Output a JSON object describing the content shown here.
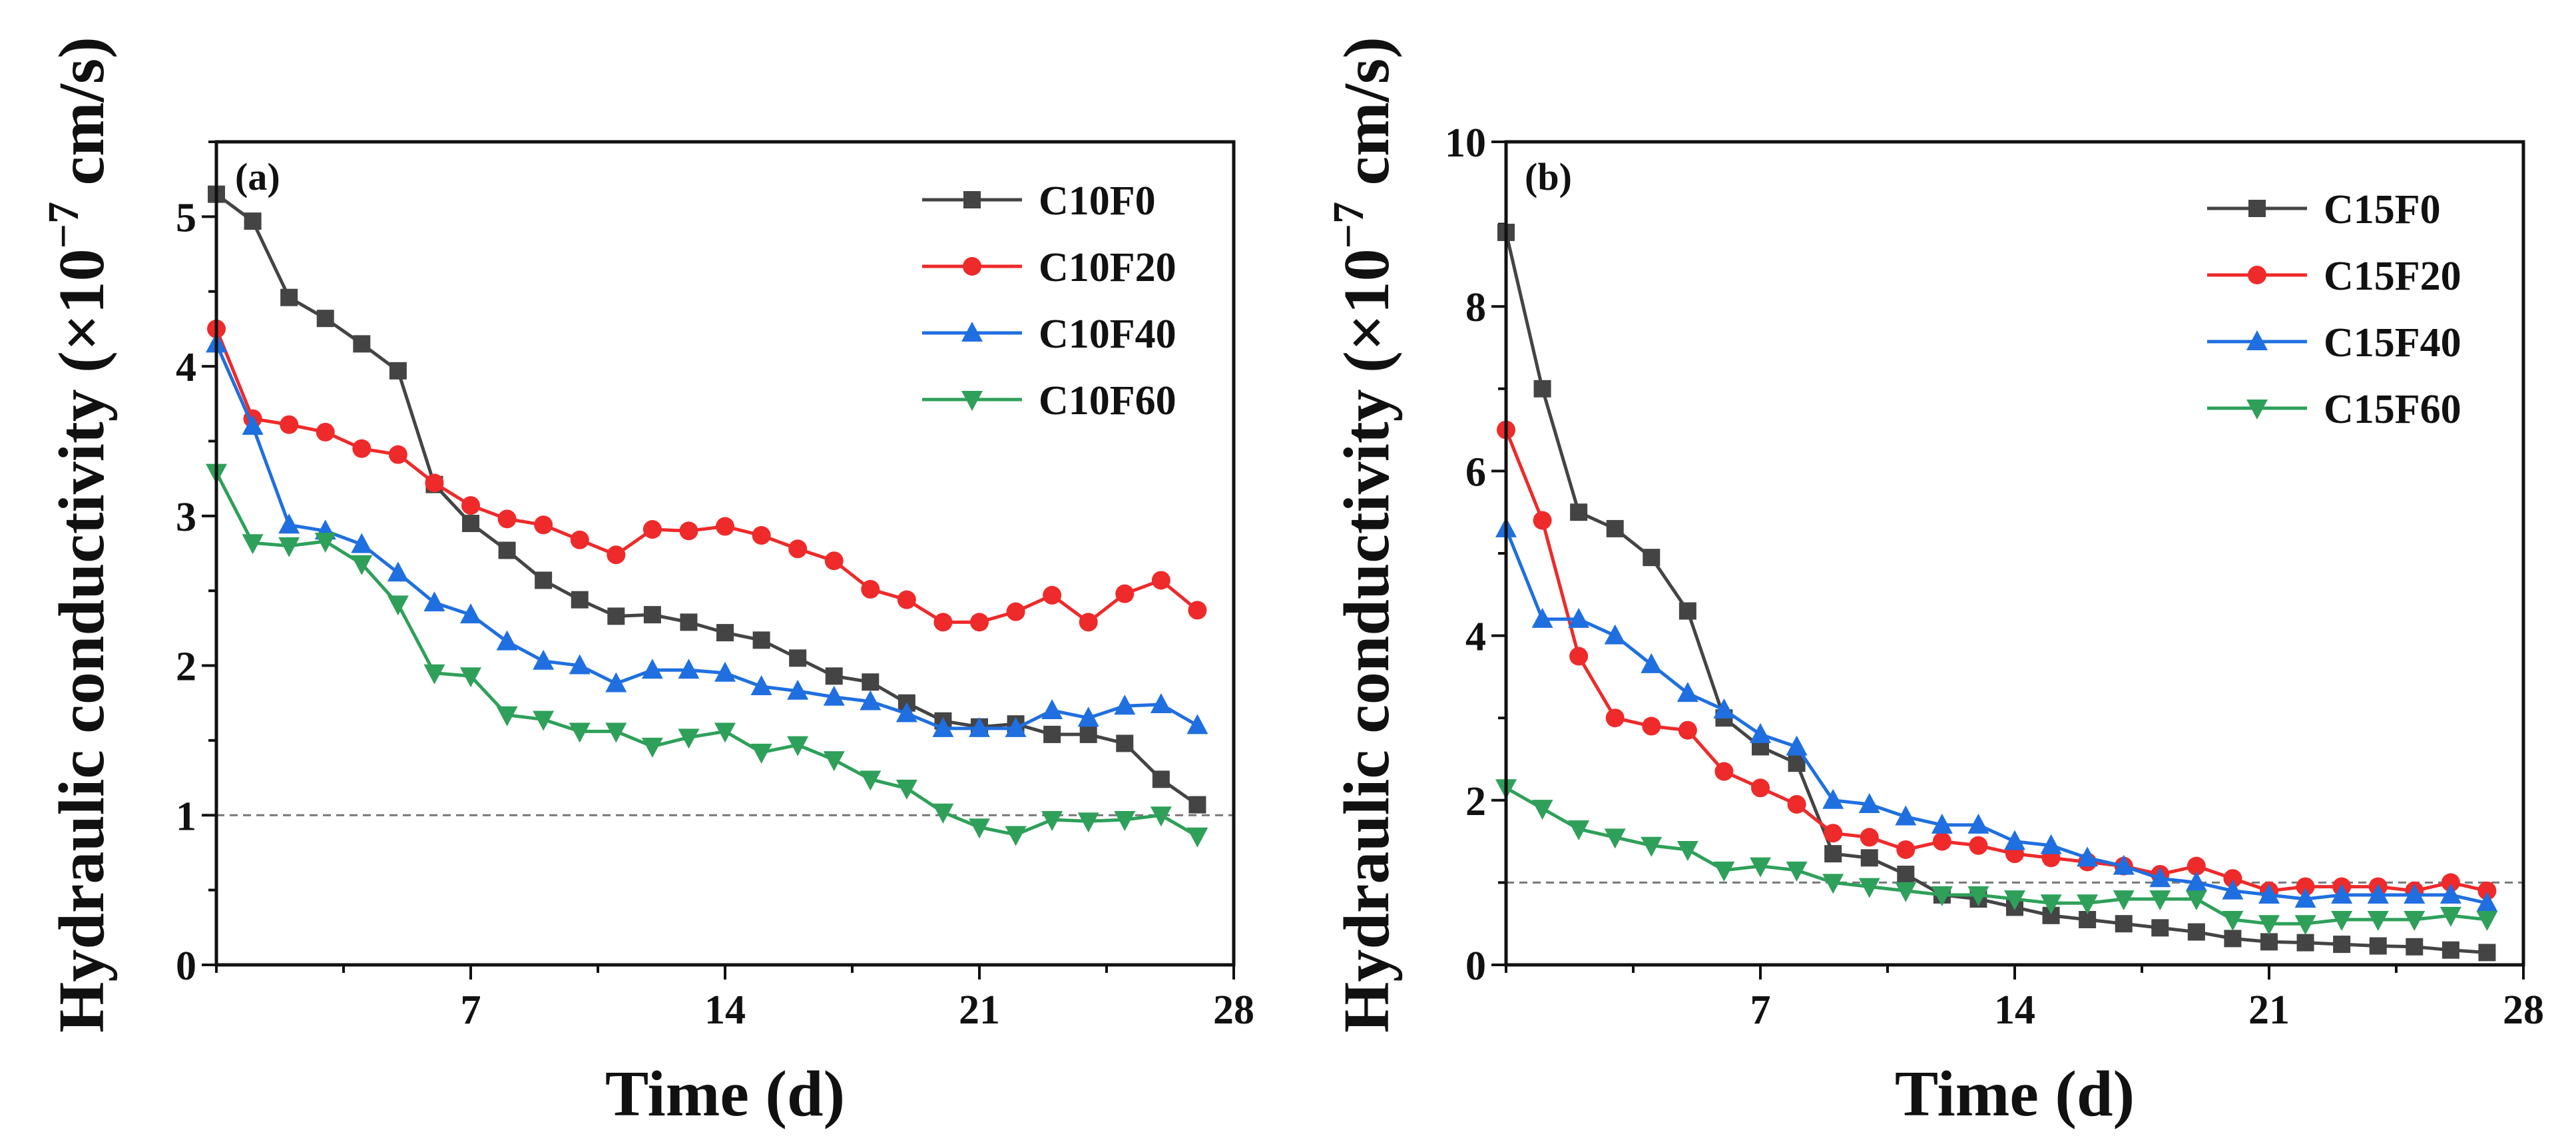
{
  "chart_data": [
    {
      "type": "line",
      "panel_label": "(a)",
      "xlabel": "Time (d)",
      "ylabel_main": "Hydraulic conductivity (×10",
      "ylabel_exp": "−7",
      "ylabel_unit": " cm/s)",
      "xlim": [
        0,
        28
      ],
      "ylim": [
        0,
        5.5
      ],
      "xticks": [
        7,
        14,
        21,
        28
      ],
      "yticks": [
        0,
        1,
        2,
        3,
        4,
        5
      ],
      "reference_line": 1,
      "legend_position": "top-right",
      "x": [
        0,
        1,
        2,
        3,
        4,
        5,
        6,
        7,
        8,
        9,
        10,
        11,
        12,
        13,
        14,
        15,
        16,
        17,
        18,
        19,
        20,
        21,
        22,
        23,
        24,
        25,
        26,
        27,
        28
      ],
      "series": [
        {
          "name": "C10F0",
          "color": "#444444",
          "marker": "square",
          "values": [
            5.15,
            4.97,
            4.46,
            4.32,
            4.15,
            3.97,
            3.21,
            2.95,
            2.77,
            2.57,
            2.44,
            2.33,
            2.34,
            2.29,
            2.22,
            2.17,
            2.05,
            1.93,
            1.89,
            1.75,
            1.63,
            1.59,
            1.61,
            1.54,
            1.54,
            1.48,
            1.24,
            1.07,
            null
          ]
        },
        {
          "name": "C10F20",
          "color": "#ee2a2a",
          "marker": "circle",
          "values": [
            4.25,
            3.65,
            3.61,
            3.56,
            3.45,
            3.41,
            3.22,
            3.07,
            2.98,
            2.94,
            2.84,
            2.74,
            2.91,
            2.9,
            2.93,
            2.87,
            2.78,
            2.7,
            2.51,
            2.44,
            2.29,
            2.29,
            2.36,
            2.47,
            2.29,
            2.48,
            2.57,
            2.37,
            null
          ]
        },
        {
          "name": "C10F40",
          "color": "#1f6fe0",
          "marker": "triangle-up",
          "values": [
            4.15,
            3.6,
            2.94,
            2.9,
            2.81,
            2.62,
            2.42,
            2.34,
            2.16,
            2.03,
            2.0,
            1.88,
            1.97,
            1.97,
            1.95,
            1.86,
            1.83,
            1.79,
            1.76,
            1.68,
            1.58,
            1.58,
            1.58,
            1.7,
            1.65,
            1.73,
            1.74,
            1.6,
            null
          ]
        },
        {
          "name": "C10F60",
          "color": "#2ea05a",
          "marker": "triangle-down",
          "values": [
            3.29,
            2.82,
            2.8,
            2.83,
            2.68,
            2.41,
            1.95,
            1.93,
            1.67,
            1.64,
            1.56,
            1.56,
            1.46,
            1.52,
            1.56,
            1.42,
            1.47,
            1.37,
            1.24,
            1.18,
            1.02,
            0.92,
            0.87,
            0.97,
            0.96,
            0.97,
            1.0,
            0.86,
            null
          ]
        }
      ]
    },
    {
      "type": "line",
      "panel_label": "(b)",
      "xlabel": "Time (d)",
      "ylabel_main": "Hydraulic conductivity (×10",
      "ylabel_exp": "−7",
      "ylabel_unit": " cm/s)",
      "xlim": [
        0,
        28
      ],
      "ylim": [
        0,
        10
      ],
      "xticks": [
        7,
        14,
        21,
        28
      ],
      "yticks": [
        0,
        2,
        4,
        6,
        8,
        10
      ],
      "reference_line": 1,
      "legend_position": "top-right",
      "x": [
        0,
        1,
        2,
        3,
        4,
        5,
        6,
        7,
        8,
        9,
        10,
        11,
        12,
        13,
        14,
        15,
        16,
        17,
        18,
        19,
        20,
        21,
        22,
        23,
        24,
        25,
        26,
        27,
        28
      ],
      "series": [
        {
          "name": "C15F0",
          "color": "#444444",
          "marker": "square",
          "values": [
            8.9,
            7.0,
            5.5,
            5.3,
            4.95,
            4.3,
            3.0,
            2.65,
            2.45,
            1.35,
            1.3,
            1.1,
            0.85,
            0.8,
            0.7,
            0.6,
            0.55,
            0.5,
            0.45,
            0.4,
            0.32,
            0.28,
            0.27,
            0.25,
            0.23,
            0.22,
            0.18,
            0.15,
            null
          ]
        },
        {
          "name": "C15F20",
          "color": "#ee2a2a",
          "marker": "circle",
          "values": [
            6.5,
            5.4,
            3.75,
            3.0,
            2.9,
            2.85,
            2.35,
            2.15,
            1.95,
            1.6,
            1.55,
            1.4,
            1.5,
            1.45,
            1.35,
            1.3,
            1.25,
            1.2,
            1.1,
            1.2,
            1.05,
            0.9,
            0.95,
            0.95,
            0.95,
            0.9,
            1.0,
            0.9,
            null
          ]
        },
        {
          "name": "C15F40",
          "color": "#1f6fe0",
          "marker": "triangle-up",
          "values": [
            5.3,
            4.2,
            4.2,
            4.0,
            3.65,
            3.3,
            3.1,
            2.8,
            2.65,
            2.0,
            1.95,
            1.8,
            1.7,
            1.7,
            1.5,
            1.45,
            1.3,
            1.2,
            1.05,
            1.0,
            0.9,
            0.85,
            0.8,
            0.85,
            0.85,
            0.85,
            0.85,
            0.75,
            null
          ]
        },
        {
          "name": "C15F60",
          "color": "#2ea05a",
          "marker": "triangle-down",
          "values": [
            2.15,
            1.9,
            1.65,
            1.55,
            1.45,
            1.4,
            1.15,
            1.2,
            1.15,
            1.0,
            0.95,
            0.9,
            0.85,
            0.85,
            0.8,
            0.75,
            0.75,
            0.8,
            0.8,
            0.8,
            0.55,
            0.5,
            0.5,
            0.55,
            0.55,
            0.55,
            0.6,
            0.55,
            null
          ]
        }
      ]
    }
  ]
}
